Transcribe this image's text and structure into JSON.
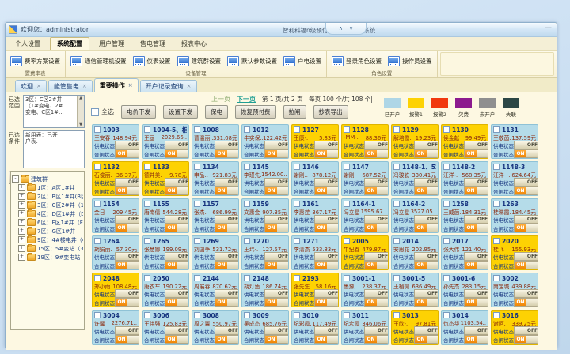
{
  "window": {
    "welcome": "欢迎您：administrator",
    "title": "智利科福n级预付费购电能管理系统",
    "collapse_up": "∧",
    "collapse_down": "∨",
    "minimize": "—"
  },
  "menu_tabs": [
    {
      "label": "个人设置",
      "active": false
    },
    {
      "label": "系统配置",
      "active": true
    },
    {
      "label": "用户管理",
      "active": false
    },
    {
      "label": "售电管理",
      "active": false
    },
    {
      "label": "报表中心",
      "active": false
    }
  ],
  "ribbon": {
    "groups": [
      {
        "label": "置费率表",
        "buttons": [
          "费率方案设置"
        ]
      },
      {
        "label": "设备管理",
        "buttons": [
          "通信管理机设置",
          "仪表设置",
          "建筑群设置",
          "默认参数设置",
          "户电设置"
        ]
      },
      {
        "label": "角色设置",
        "buttons": [
          "登录角色设置",
          "操作员设置"
        ]
      }
    ]
  },
  "doc_tabs": [
    {
      "label": "欢迎",
      "active": false
    },
    {
      "label": "能管售电",
      "active": false
    },
    {
      "label": "重要操作",
      "active": true
    },
    {
      "label": "开户记录查询",
      "active": false
    }
  ],
  "filters": {
    "range_label": "已选范围",
    "range_lines": [
      "3区：C区2#井",
      "（1#变电、2#",
      "变电、C区1#…"
    ],
    "cond_label": "已选条件",
    "cond_lines": [
      "新用表：已开",
      "户表."
    ],
    "filter_btn": "点击选择过滤条件",
    "refresh_btn": "刷新"
  },
  "tree": {
    "root": "建筑群",
    "items": [
      "1区：A区1#井",
      "2区：B区1#井(B区1#)",
      "3区：C区2#井（1#变",
      "4区：D区1#井（D区1",
      "6区：F区1#井（F区1#",
      "7区：G区1#井",
      "9区：4#楼电井（4#楼",
      "15区：5#变站（3#变",
      "19区：9#变电站（2#"
    ]
  },
  "pager": {
    "prev": "上一页",
    "next": "下一页",
    "info": "第 1 页/共 2 页　每页 100 个/共 108 个|"
  },
  "toolbar": {
    "select_all": "全选",
    "buttons": [
      "电价下发",
      "设置下发",
      "保电",
      "恢复预付费",
      "拉闸",
      "抄表导出"
    ]
  },
  "legend": [
    {
      "label": "已开户",
      "color": "#aed6e6"
    },
    {
      "label": "报警1",
      "color": "#fdd203"
    },
    {
      "label": "报警2",
      "color": "#f1380e"
    },
    {
      "label": "欠费",
      "color": "#8c1a8e"
    },
    {
      "label": "未开户",
      "color": "#8f8f8f"
    },
    {
      "label": "失联",
      "color": "#2c4745"
    }
  ],
  "card_labels": {
    "supply": "供电状态",
    "gate": "合闸状态",
    "on": "ON",
    "off": "OFF"
  },
  "rooms": [
    {
      "no": "1003",
      "name": "王安春",
      "amt": "148.94元",
      "type": "open"
    },
    {
      "no": "1004-5、相一",
      "name": "王画",
      "amt": "2029.66..",
      "type": "open"
    },
    {
      "no": "1008",
      "name": "曹温丽..",
      "amt": "331.08元",
      "type": "open"
    },
    {
      "no": "1012",
      "name": "牛实保..",
      "amt": "122.42元",
      "type": "open"
    },
    {
      "no": "1127",
      "name": "王康-.",
      "amt": "5.83元",
      "type": "alarm1"
    },
    {
      "no": "1128",
      "name": "-MM-.",
      "amt": "88.36元",
      "type": "alarm1"
    },
    {
      "no": "1129",
      "name": "解培霞.",
      "amt": "19.23元",
      "type": "alarm1"
    },
    {
      "no": "1130",
      "name": "侯金献",
      "amt": "99.49元",
      "type": "alarm1"
    },
    {
      "no": "1131",
      "name": "王敬茵.",
      "amt": "137.59元",
      "type": "open"
    },
    {
      "no": "1132",
      "name": "石俊丽.",
      "amt": "36.37元",
      "type": "alarm1"
    },
    {
      "no": "1133",
      "name": "德井美.",
      "amt": "9.78元",
      "type": "alarm1"
    },
    {
      "no": "1134",
      "name": "申品..",
      "amt": "921.83元",
      "type": "open"
    },
    {
      "no": "1145",
      "name": "李瑾先.",
      "amt": "1542.00..",
      "type": "open"
    },
    {
      "no": "1146",
      "name": "谢刚..",
      "amt": "878.12元",
      "type": "open"
    },
    {
      "no": "1147",
      "name": "谢刚",
      "amt": "687.52元",
      "type": "open"
    },
    {
      "no": "1148-1、522",
      "name": "冯骏铁",
      "amt": "330.41元",
      "type": "open"
    },
    {
      "no": "1148-2",
      "name": "汪洋-.",
      "amt": "568.35元",
      "type": "open"
    },
    {
      "no": "1148-3",
      "name": "汪洋~.",
      "amt": "624.64元",
      "type": "open"
    },
    {
      "no": "1154",
      "name": "金日",
      "amt": "209.45元",
      "type": "open"
    },
    {
      "no": "1155",
      "name": "唐南倩",
      "amt": "544.28元",
      "type": "open"
    },
    {
      "no": "1157",
      "name": "张杰.",
      "amt": "686.99元",
      "type": "open"
    },
    {
      "no": "1159",
      "name": "文惠金",
      "amt": "907.35元",
      "type": "open"
    },
    {
      "no": "1161",
      "name": "李惠茳",
      "amt": "367.17元",
      "type": "open"
    },
    {
      "no": "1164-1",
      "name": "冯立星",
      "amt": "1595.67..",
      "type": "open"
    },
    {
      "no": "1164-2",
      "name": "冯立星",
      "amt": "3527.05..",
      "type": "open"
    },
    {
      "no": "1258",
      "name": "王威茵.",
      "amt": "184.31元",
      "type": "open"
    },
    {
      "no": "1263",
      "name": "桂琳霞.",
      "amt": "184.45元",
      "type": "open"
    },
    {
      "no": "1264",
      "name": "胡娟丽.",
      "amt": "57.30元",
      "type": "open"
    },
    {
      "no": "1265",
      "name": "张慧娜",
      "amt": "199.09元",
      "type": "open"
    },
    {
      "no": "1269",
      "name": "刘国争",
      "amt": "531.72元",
      "type": "open"
    },
    {
      "no": "1270",
      "name": "王玮-.",
      "amt": "127.57元",
      "type": "open"
    },
    {
      "no": "1271",
      "name": "李清杰",
      "amt": "533.83元",
      "type": "open"
    },
    {
      "no": "2005",
      "name": "牛纪春",
      "amt": "479.87元",
      "type": "alarm1"
    },
    {
      "no": "2014",
      "name": "安思花",
      "amt": "202.95元",
      "type": "open"
    },
    {
      "no": "2017",
      "name": "张大伟",
      "amt": "121.40元",
      "type": "open"
    },
    {
      "no": "2020",
      "name": "桂飞",
      "amt": "155.93元",
      "type": "alarm1"
    },
    {
      "no": "2048",
      "name": "郑小雨",
      "amt": "108.48元",
      "type": "alarm1"
    },
    {
      "no": "2050",
      "name": "唐衣车",
      "amt": "190.22元",
      "type": "open"
    },
    {
      "no": "2144",
      "name": "周展春",
      "amt": "870.62元",
      "type": "open"
    },
    {
      "no": "2148",
      "name": "胡灯鱼",
      "amt": "186.74元",
      "type": "open"
    },
    {
      "no": "2193",
      "name": "张先生.",
      "amt": "58.16元",
      "type": "alarm1"
    },
    {
      "no": "3001-1",
      "name": "墨豫.",
      "amt": "238.37元",
      "type": "open"
    },
    {
      "no": "3001-5",
      "name": "王楣微",
      "amt": "636.49元",
      "type": "open"
    },
    {
      "no": "3001-6",
      "name": "孙先杰",
      "amt": "283.15元",
      "type": "open"
    },
    {
      "no": "3002",
      "name": "南宝城",
      "amt": "439.88元",
      "type": "open"
    },
    {
      "no": "3004",
      "name": "许馨",
      "amt": "2276.71..",
      "type": "open"
    },
    {
      "no": "3006",
      "name": "王伟强",
      "amt": "125.83元",
      "type": "open"
    },
    {
      "no": "3008",
      "name": "周之翼",
      "amt": "550.97元",
      "type": "open"
    },
    {
      "no": "3009",
      "name": "吴成杰",
      "amt": "685.76元",
      "type": "open"
    },
    {
      "no": "3010",
      "name": "纪彩霞.",
      "amt": "117.49元",
      "type": "open"
    },
    {
      "no": "3011",
      "name": "纪宏霞",
      "amt": "346.06元",
      "type": "open"
    },
    {
      "no": "3013",
      "name": "王欣-.",
      "amt": "97.81元",
      "type": "alarm1"
    },
    {
      "no": "3014",
      "name": "仇杰华",
      "amt": "1103.54..",
      "type": "open"
    },
    {
      "no": "3016",
      "name": "谢阿.",
      "amt": "339.25元",
      "type": "alarm1"
    }
  ]
}
